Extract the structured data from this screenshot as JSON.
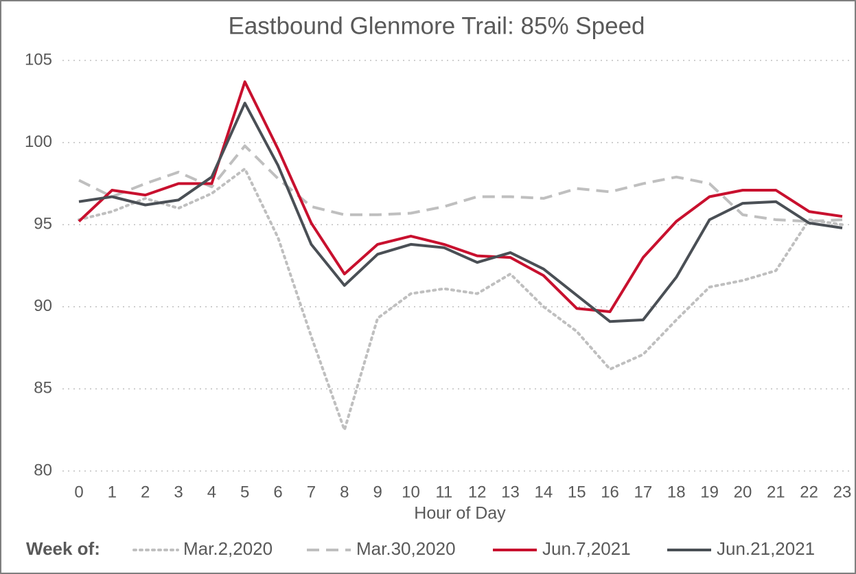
{
  "chart_data": {
    "type": "line",
    "title": "Eastbound Glenmore Trail: 85% Speed",
    "x_label": "Hour of Day",
    "legend_title": "Week of:",
    "categories": [
      "0",
      "1",
      "2",
      "3",
      "4",
      "5",
      "6",
      "7",
      "8",
      "9",
      "10",
      "11",
      "12",
      "13",
      "14",
      "15",
      "16",
      "17",
      "18",
      "19",
      "20",
      "21",
      "22",
      "23"
    ],
    "ylim": [
      80,
      105
    ],
    "yticks": [
      80,
      85,
      90,
      95,
      100,
      105
    ],
    "grid": true,
    "legend": "bottom",
    "series": [
      {
        "name": "Mar.2,2020",
        "color": "#bfbfbf",
        "dash": "dotted",
        "values": [
          95.3,
          95.8,
          96.6,
          96.0,
          96.9,
          98.4,
          94.2,
          88.2,
          82.5,
          89.3,
          90.8,
          91.1,
          90.8,
          92.0,
          90.0,
          88.5,
          86.2,
          87.1,
          89.2,
          91.2,
          91.6,
          92.2,
          95.3,
          95.0
        ]
      },
      {
        "name": "Mar.30,2020",
        "color": "#bfbfbf",
        "dash": "dashed",
        "values": [
          97.7,
          96.7,
          97.5,
          98.2,
          97.3,
          99.8,
          97.8,
          96.1,
          95.6,
          95.6,
          95.7,
          96.1,
          96.7,
          96.7,
          96.6,
          97.2,
          97.0,
          97.5,
          97.9,
          97.5,
          95.6,
          95.3,
          95.2,
          95.3
        ]
      },
      {
        "name": "Jun.7,2021",
        "color": "#c8102e",
        "dash": "solid",
        "values": [
          95.2,
          97.1,
          96.8,
          97.5,
          97.5,
          103.7,
          99.6,
          95.1,
          92.0,
          93.8,
          94.3,
          93.8,
          93.1,
          93.0,
          91.9,
          89.9,
          89.7,
          93.0,
          95.2,
          96.7,
          97.1,
          97.1,
          95.8,
          95.5
        ]
      },
      {
        "name": "Jun.21,2021",
        "color": "#4a4f55",
        "dash": "solid",
        "values": [
          96.4,
          96.7,
          96.2,
          96.5,
          97.9,
          102.4,
          98.6,
          93.8,
          91.3,
          93.2,
          93.8,
          93.6,
          92.7,
          93.3,
          92.3,
          90.7,
          89.1,
          89.2,
          91.8,
          95.3,
          96.3,
          96.4,
          95.1,
          94.8
        ]
      }
    ]
  }
}
